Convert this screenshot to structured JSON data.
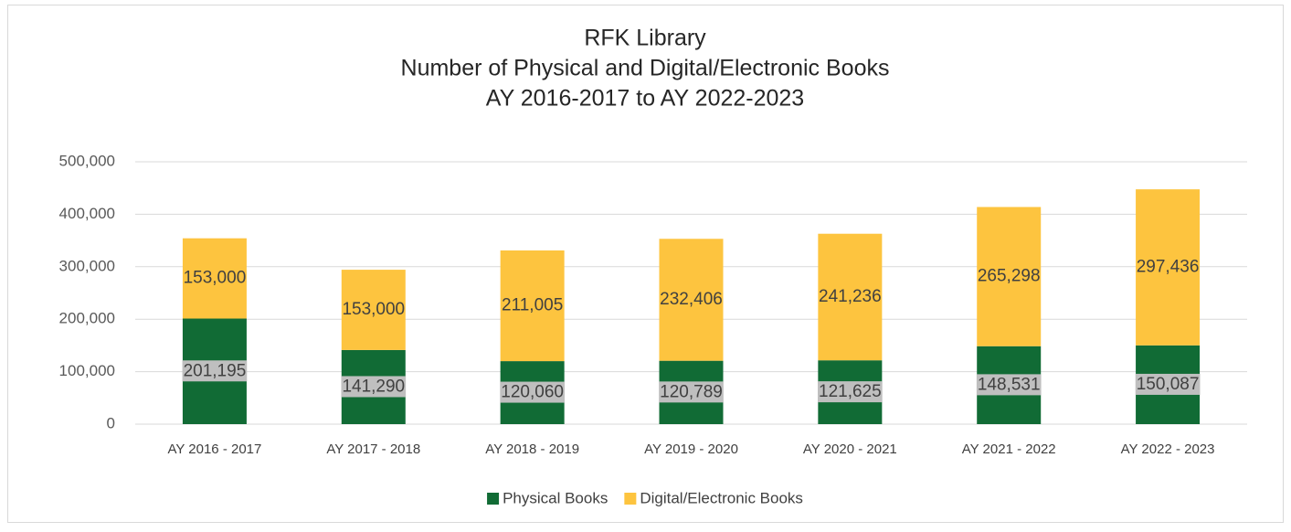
{
  "chart_data": {
    "type": "stacked_bar",
    "title": [
      "RFK Library",
      "Number of Physical and Digital/Electronic Books",
      "AY 2016-2017 to AY 2022-2023"
    ],
    "categories": [
      "AY 2016 - 2017",
      "AY 2017 - 2018",
      "AY 2018 - 2019",
      "AY 2019 - 2020",
      "AY 2020 - 2021",
      "AY 2021 - 2022",
      "AY 2022 - 2023"
    ],
    "series": [
      {
        "name": "Physical Books",
        "color": "#116b35",
        "values": [
          201195,
          141290,
          120060,
          120789,
          121625,
          148531,
          150087
        ],
        "value_labels": [
          "201,195",
          "141,290",
          "120,060",
          "120,789",
          "121,625",
          "148,531",
          "150,087"
        ]
      },
      {
        "name": "Digital/Electronic Books",
        "color": "#fdc43f",
        "values": [
          153000,
          153000,
          211005,
          232406,
          241236,
          265298,
          297436
        ],
        "value_labels": [
          "153,000",
          "153,000",
          "211,005",
          "232,406",
          "241,236",
          "265,298",
          "297,436"
        ]
      }
    ],
    "ylim": [
      0,
      500000
    ],
    "yticks": [
      0,
      {
        "value": 100000,
        "label": "100,000"
      },
      {
        "value": 200000,
        "label": "200,000"
      },
      {
        "value": 300000,
        "label": "300,000"
      },
      {
        "value": 400000,
        "label": "400,000"
      },
      {
        "value": 500000,
        "label": "500,000"
      }
    ],
    "grid": true,
    "legend": "bottom"
  }
}
